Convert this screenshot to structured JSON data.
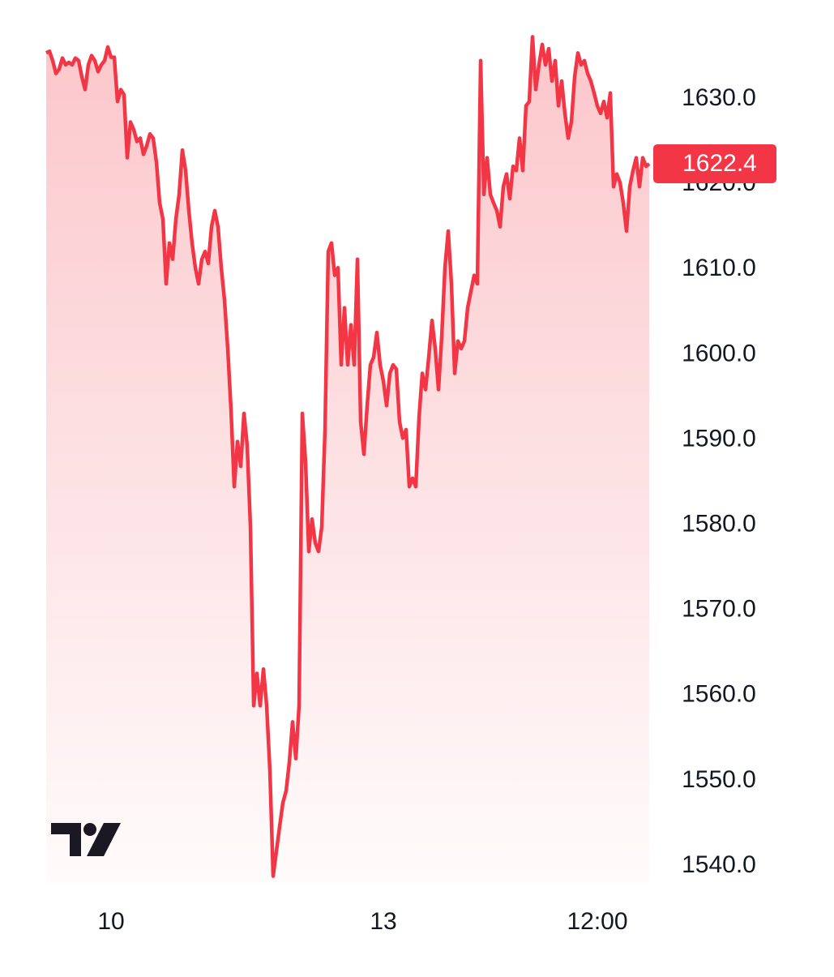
{
  "chart_data": {
    "type": "area",
    "color": "#f23645",
    "values": [
      1635.4,
      1635.6,
      1634.5,
      1633.0,
      1633.5,
      1634.8,
      1634.0,
      1634.3,
      1634.0,
      1634.8,
      1634.5,
      1632.6,
      1631.1,
      1634.0,
      1635.1,
      1634.5,
      1633.2,
      1634.0,
      1634.5,
      1636.1,
      1634.9,
      1634.9,
      1629.7,
      1631.1,
      1630.5,
      1623.1,
      1627.3,
      1626.4,
      1625.0,
      1625.4,
      1623.5,
      1624.5,
      1625.9,
      1625.4,
      1622.6,
      1617.8,
      1615.9,
      1608.3,
      1613.1,
      1611.2,
      1615.9,
      1618.8,
      1624.0,
      1621.6,
      1616.9,
      1613.1,
      1610.2,
      1608.3,
      1611.2,
      1612.1,
      1610.7,
      1615.0,
      1616.9,
      1615.0,
      1610.2,
      1606.4,
      1600.7,
      1593.6,
      1584.5,
      1589.8,
      1586.9,
      1593.1,
      1589.3,
      1579.8,
      1558.8,
      1562.6,
      1558.8,
      1563.1,
      1558.8,
      1551.2,
      1538.8,
      1541.7,
      1544.6,
      1547.4,
      1548.8,
      1552.2,
      1556.9,
      1552.6,
      1558.8,
      1593.1,
      1587.4,
      1576.9,
      1580.7,
      1577.9,
      1576.9,
      1579.8,
      1591.2,
      1612.1,
      1613.1,
      1609.3,
      1610.2,
      1598.8,
      1605.5,
      1598.8,
      1603.5,
      1598.8,
      1611.2,
      1592.1,
      1588.3,
      1594.0,
      1598.8,
      1599.7,
      1602.6,
      1598.8,
      1596.9,
      1594.0,
      1597.8,
      1598.8,
      1598.3,
      1592.1,
      1590.2,
      1591.2,
      1584.5,
      1585.5,
      1584.5,
      1592.6,
      1597.8,
      1595.9,
      1599.7,
      1604.0,
      1600.7,
      1595.9,
      1602.1,
      1610.2,
      1614.5,
      1608.3,
      1597.8,
      1601.6,
      1600.7,
      1601.6,
      1605.5,
      1607.4,
      1609.3,
      1608.3,
      1634.5,
      1618.8,
      1623.1,
      1618.8,
      1617.8,
      1616.9,
      1615.0,
      1619.7,
      1621.2,
      1618.3,
      1622.1,
      1621.6,
      1625.4,
      1621.6,
      1629.2,
      1629.7,
      1637.3,
      1631.1,
      1634.0,
      1636.4,
      1634.0,
      1635.9,
      1632.1,
      1634.5,
      1629.2,
      1632.1,
      1628.3,
      1625.4,
      1627.3,
      1632.6,
      1635.4,
      1634.0,
      1634.5,
      1633.0,
      1632.1,
      1630.7,
      1629.2,
      1628.3,
      1629.7,
      1627.8,
      1630.7,
      1619.7,
      1621.2,
      1620.2,
      1617.8,
      1614.5,
      1619.7,
      1621.6,
      1623.1,
      1619.7,
      1623.1,
      1622.1,
      1622.4
    ],
    "xlim": [
      0,
      186
    ],
    "xticks": [
      {
        "value": 20,
        "label": "10"
      },
      {
        "value": 104,
        "label": "13"
      },
      {
        "value": 170,
        "label": "12:00"
      }
    ],
    "ylim": [
      1538,
      1638
    ],
    "yticks": [
      {
        "value": 1540,
        "label": "1540.0"
      },
      {
        "value": 1550,
        "label": "1550.0"
      },
      {
        "value": 1560,
        "label": "1560.0"
      },
      {
        "value": 1570,
        "label": "1570.0"
      },
      {
        "value": 1580,
        "label": "1580.0"
      },
      {
        "value": 1590,
        "label": "1590.0"
      },
      {
        "value": 1600,
        "label": "1600.0"
      },
      {
        "value": 1610,
        "label": "1610.0"
      },
      {
        "value": 1620,
        "label": "1620.0"
      },
      {
        "value": 1630,
        "label": "1630.0"
      }
    ],
    "last_price": 1622.4
  }
}
